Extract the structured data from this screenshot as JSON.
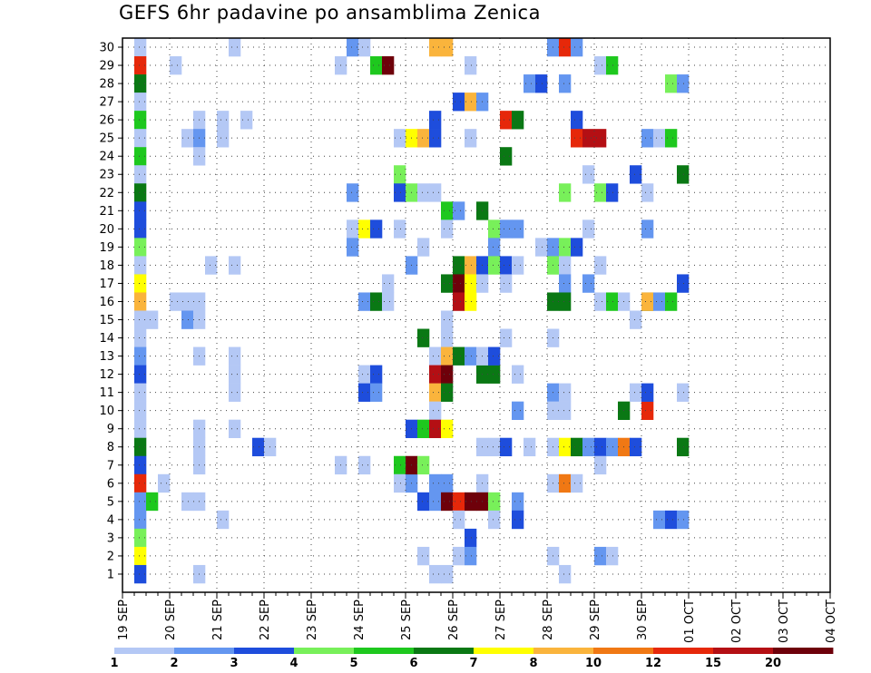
{
  "title": "GEFS 6hr padavine po ansamblima Zenica",
  "chart_data": {
    "type": "heatmap",
    "title": "GEFS 6hr padavine po ansamblima Zenica",
    "x_date_labels": [
      "19 SEP",
      "20 SEP",
      "21 SEP",
      "22 SEP",
      "23 SEP",
      "24 SEP",
      "25 SEP",
      "26 SEP",
      "27 SEP",
      "28 SEP",
      "29 SEP",
      "30 SEP",
      "01 OCT",
      "02 OCT",
      "03 OCT",
      "04 OCT"
    ],
    "y_members": [
      1,
      2,
      3,
      4,
      5,
      6,
      7,
      8,
      9,
      10,
      11,
      12,
      13,
      14,
      15,
      16,
      17,
      18,
      19,
      20,
      21,
      22,
      23,
      24,
      25,
      26,
      27,
      28,
      29,
      30
    ],
    "steps_per_day": 4,
    "x_range_steps": [
      0,
      60
    ],
    "color_levels": [
      1,
      2,
      3,
      4,
      5,
      6,
      7,
      8,
      10,
      12,
      15,
      20
    ],
    "level_colors": [
      "#b4c8f5",
      "#6496f0",
      "#1e4ddc",
      "#78f05a",
      "#1ec81e",
      "#0a7814",
      "#ffff00",
      "#fab43c",
      "#f07814",
      "#e6280a",
      "#b40f14",
      "#6e000a"
    ],
    "grid": true,
    "cells": [
      [
        1,
        30,
        0
      ],
      [
        1,
        29,
        9
      ],
      [
        1,
        28,
        5
      ],
      [
        1,
        27,
        0
      ],
      [
        1,
        26,
        4
      ],
      [
        1,
        25,
        0
      ],
      [
        1,
        24,
        4
      ],
      [
        1,
        23,
        0
      ],
      [
        1,
        22,
        5
      ],
      [
        1,
        21,
        2
      ],
      [
        1,
        20,
        2
      ],
      [
        1,
        19,
        3
      ],
      [
        1,
        18,
        0
      ],
      [
        1,
        17,
        6
      ],
      [
        1,
        16,
        7
      ],
      [
        1,
        15,
        0
      ],
      [
        1,
        14,
        0
      ],
      [
        1,
        13,
        1
      ],
      [
        1,
        12,
        2
      ],
      [
        1,
        11,
        0
      ],
      [
        1,
        10,
        0
      ],
      [
        1,
        9,
        0
      ],
      [
        1,
        8,
        5
      ],
      [
        1,
        7,
        2
      ],
      [
        1,
        6,
        9
      ],
      [
        1,
        5,
        1
      ],
      [
        1,
        4,
        1
      ],
      [
        1,
        3,
        3
      ],
      [
        1,
        2,
        6
      ],
      [
        1,
        1,
        2
      ],
      [
        2,
        15,
        0
      ],
      [
        2,
        5,
        4
      ],
      [
        3,
        6,
        0
      ],
      [
        4,
        29,
        0
      ],
      [
        4,
        16,
        0
      ],
      [
        5,
        25,
        0
      ],
      [
        5,
        16,
        0
      ],
      [
        5,
        15,
        1
      ],
      [
        5,
        5,
        0
      ],
      [
        6,
        26,
        0
      ],
      [
        6,
        25,
        1
      ],
      [
        6,
        24,
        0
      ],
      [
        6,
        16,
        0
      ],
      [
        6,
        15,
        0
      ],
      [
        6,
        13,
        0
      ],
      [
        6,
        9,
        0
      ],
      [
        6,
        8,
        0
      ],
      [
        6,
        7,
        0
      ],
      [
        6,
        5,
        0
      ],
      [
        6,
        1,
        0
      ],
      [
        7,
        18,
        0
      ],
      [
        8,
        26,
        0
      ],
      [
        8,
        25,
        0
      ],
      [
        8,
        4,
        0
      ],
      [
        9,
        30,
        0
      ],
      [
        9,
        18,
        0
      ],
      [
        9,
        13,
        0
      ],
      [
        9,
        12,
        0
      ],
      [
        9,
        11,
        0
      ],
      [
        9,
        9,
        0
      ],
      [
        10,
        26,
        0
      ],
      [
        11,
        8,
        2
      ],
      [
        12,
        8,
        0
      ],
      [
        18,
        29,
        0
      ],
      [
        18,
        7,
        0
      ],
      [
        19,
        30,
        1
      ],
      [
        19,
        22,
        1
      ],
      [
        19,
        20,
        0
      ],
      [
        19,
        19,
        1
      ],
      [
        20,
        30,
        0
      ],
      [
        20,
        20,
        6
      ],
      [
        20,
        16,
        1
      ],
      [
        20,
        12,
        0
      ],
      [
        20,
        11,
        2
      ],
      [
        20,
        7,
        0
      ],
      [
        21,
        29,
        4
      ],
      [
        21,
        20,
        2
      ],
      [
        21,
        16,
        5
      ],
      [
        21,
        12,
        2
      ],
      [
        21,
        11,
        1
      ],
      [
        22,
        29,
        11
      ],
      [
        22,
        17,
        0
      ],
      [
        22,
        16,
        0
      ],
      [
        23,
        25,
        0
      ],
      [
        23,
        23,
        3
      ],
      [
        23,
        22,
        2
      ],
      [
        23,
        20,
        0
      ],
      [
        23,
        7,
        4
      ],
      [
        23,
        6,
        0
      ],
      [
        24,
        25,
        6
      ],
      [
        24,
        22,
        3
      ],
      [
        24,
        6,
        1
      ],
      [
        24,
        7,
        11
      ],
      [
        24,
        18,
        1
      ],
      [
        24,
        9,
        2
      ],
      [
        25,
        25,
        7
      ],
      [
        25,
        22,
        0
      ],
      [
        25,
        19,
        0
      ],
      [
        25,
        14,
        5
      ],
      [
        25,
        7,
        3
      ],
      [
        25,
        5,
        2
      ],
      [
        25,
        2,
        0
      ],
      [
        25,
        9,
        4
      ],
      [
        26,
        25,
        2
      ],
      [
        26,
        26,
        2
      ],
      [
        26,
        22,
        0
      ],
      [
        26,
        13,
        0
      ],
      [
        26,
        12,
        10
      ],
      [
        26,
        11,
        7
      ],
      [
        26,
        10,
        0
      ],
      [
        26,
        9,
        10
      ],
      [
        26,
        6,
        1
      ],
      [
        26,
        5,
        1
      ],
      [
        26,
        1,
        0
      ],
      [
        26,
        30,
        7
      ],
      [
        27,
        21,
        4
      ],
      [
        27,
        17,
        5
      ],
      [
        27,
        15,
        0
      ],
      [
        27,
        14,
        0
      ],
      [
        27,
        13,
        7
      ],
      [
        27,
        12,
        11
      ],
      [
        27,
        11,
        5
      ],
      [
        27,
        9,
        6
      ],
      [
        27,
        6,
        1
      ],
      [
        27,
        5,
        11
      ],
      [
        27,
        1,
        0
      ],
      [
        27,
        30,
        7
      ],
      [
        27,
        20,
        0
      ],
      [
        28,
        18,
        5
      ],
      [
        28,
        17,
        11
      ],
      [
        28,
        16,
        10
      ],
      [
        28,
        13,
        5
      ],
      [
        28,
        5,
        9
      ],
      [
        28,
        4,
        0
      ],
      [
        28,
        2,
        0
      ],
      [
        28,
        27,
        2
      ],
      [
        28,
        21,
        1
      ],
      [
        29,
        27,
        7
      ],
      [
        29,
        18,
        7
      ],
      [
        29,
        17,
        6
      ],
      [
        29,
        16,
        6
      ],
      [
        29,
        5,
        11
      ],
      [
        29,
        3,
        2
      ],
      [
        29,
        2,
        1
      ],
      [
        29,
        13,
        1
      ],
      [
        29,
        29,
        0
      ],
      [
        29,
        25,
        0
      ],
      [
        30,
        27,
        1
      ],
      [
        30,
        18,
        2
      ],
      [
        30,
        17,
        0
      ],
      [
        30,
        21,
        5
      ],
      [
        30,
        12,
        5
      ],
      [
        30,
        13,
        0
      ],
      [
        30,
        6,
        0
      ],
      [
        30,
        5,
        11
      ],
      [
        30,
        8,
        0
      ],
      [
        31,
        20,
        3
      ],
      [
        31,
        19,
        1
      ],
      [
        31,
        18,
        3
      ],
      [
        31,
        5,
        3
      ],
      [
        31,
        4,
        0
      ],
      [
        31,
        8,
        0
      ],
      [
        31,
        12,
        5
      ],
      [
        31,
        13,
        2
      ],
      [
        32,
        26,
        9
      ],
      [
        32,
        24,
        5
      ],
      [
        32,
        18,
        2
      ],
      [
        32,
        17,
        0
      ],
      [
        32,
        20,
        1
      ],
      [
        32,
        8,
        2
      ],
      [
        32,
        14,
        0
      ],
      [
        33,
        26,
        5
      ],
      [
        33,
        20,
        1
      ],
      [
        33,
        18,
        0
      ],
      [
        33,
        10,
        1
      ],
      [
        33,
        5,
        1
      ],
      [
        33,
        4,
        2
      ],
      [
        33,
        12,
        0
      ],
      [
        34,
        28,
        1
      ],
      [
        34,
        8,
        0
      ],
      [
        35,
        28,
        2
      ],
      [
        35,
        19,
        0
      ],
      [
        36,
        30,
        1
      ],
      [
        36,
        19,
        1
      ],
      [
        36,
        18,
        3
      ],
      [
        36,
        16,
        5
      ],
      [
        36,
        14,
        0
      ],
      [
        36,
        11,
        1
      ],
      [
        36,
        6,
        0
      ],
      [
        36,
        2,
        0
      ],
      [
        36,
        8,
        0
      ],
      [
        36,
        10,
        0
      ],
      [
        37,
        30,
        9
      ],
      [
        37,
        28,
        1
      ],
      [
        37,
        19,
        3
      ],
      [
        37,
        18,
        0
      ],
      [
        37,
        17,
        1
      ],
      [
        37,
        16,
        5
      ],
      [
        37,
        11,
        0
      ],
      [
        37,
        10,
        0
      ],
      [
        37,
        6,
        8
      ],
      [
        37,
        8,
        6
      ],
      [
        37,
        22,
        3
      ],
      [
        37,
        1,
        0
      ],
      [
        38,
        30,
        1
      ],
      [
        38,
        26,
        2
      ],
      [
        38,
        19,
        2
      ],
      [
        38,
        8,
        5
      ],
      [
        38,
        6,
        0
      ],
      [
        38,
        25,
        9
      ],
      [
        39,
        25,
        10
      ],
      [
        39,
        17,
        1
      ],
      [
        39,
        8,
        1
      ],
      [
        39,
        20,
        0
      ],
      [
        39,
        23,
        0
      ],
      [
        40,
        29,
        0
      ],
      [
        40,
        22,
        3
      ],
      [
        40,
        8,
        2
      ],
      [
        40,
        2,
        1
      ],
      [
        40,
        18,
        0
      ],
      [
        40,
        25,
        10
      ],
      [
        40,
        16,
        0
      ],
      [
        40,
        7,
        0
      ],
      [
        41,
        29,
        4
      ],
      [
        41,
        22,
        2
      ],
      [
        41,
        16,
        4
      ],
      [
        41,
        2,
        0
      ],
      [
        41,
        8,
        1
      ],
      [
        42,
        8,
        8
      ],
      [
        42,
        16,
        0
      ],
      [
        42,
        10,
        5
      ],
      [
        43,
        8,
        2
      ],
      [
        43,
        23,
        2
      ],
      [
        43,
        15,
        0
      ],
      [
        43,
        11,
        0
      ],
      [
        44,
        10,
        9
      ],
      [
        44,
        16,
        5
      ],
      [
        44,
        25,
        1
      ],
      [
        44,
        20,
        1
      ],
      [
        44,
        22,
        0
      ],
      [
        44,
        16,
        7
      ],
      [
        44,
        11,
        2
      ],
      [
        45,
        25,
        0
      ],
      [
        45,
        16,
        1
      ],
      [
        45,
        4,
        1
      ],
      [
        46,
        25,
        4
      ],
      [
        46,
        4,
        2
      ],
      [
        46,
        16,
        4
      ],
      [
        46,
        28,
        3
      ],
      [
        47,
        28,
        1
      ],
      [
        47,
        4,
        1
      ],
      [
        47,
        8,
        5
      ],
      [
        47,
        23,
        5
      ],
      [
        47,
        17,
        2
      ],
      [
        47,
        11,
        0
      ]
    ]
  }
}
